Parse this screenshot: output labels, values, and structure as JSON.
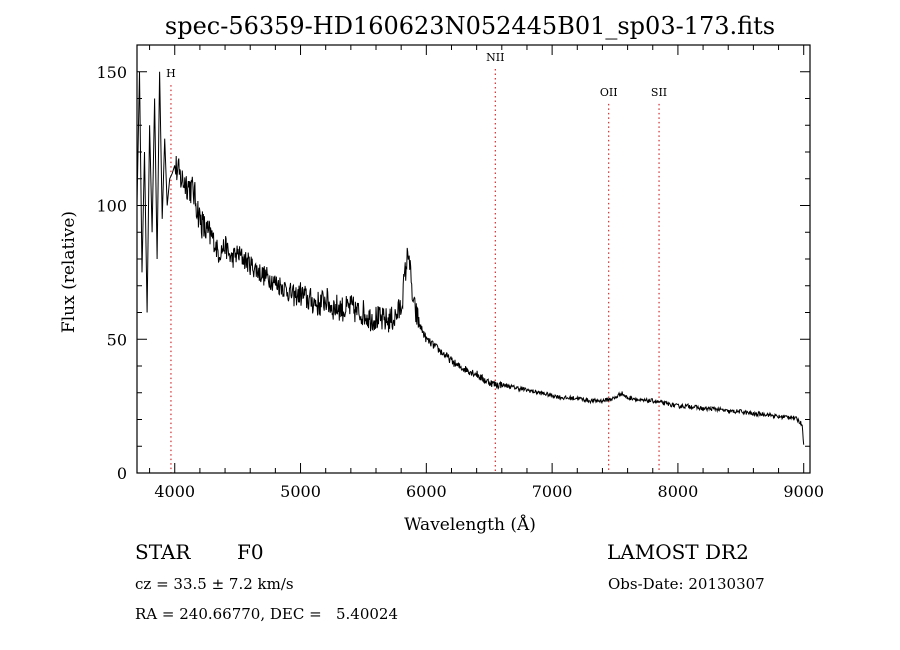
{
  "chart_data": {
    "type": "line",
    "title": "spec-56359-HD160623N052445B01_sp03-173.fits",
    "xlabel": "Wavelength (Å)",
    "ylabel": "Flux (relative)",
    "xlim": [
      3700,
      9050
    ],
    "ylim": [
      0,
      160
    ],
    "xticks": [
      4000,
      5000,
      6000,
      7000,
      8000,
      9000
    ],
    "yticks": [
      0,
      50,
      100,
      150
    ],
    "grid": false,
    "lines": [
      {
        "label": "H",
        "x": 3970,
        "label_y": 148
      },
      {
        "label": "NII",
        "x": 6548,
        "label_y": 154
      },
      {
        "label": "OII",
        "x": 7450,
        "label_y": 141
      },
      {
        "label": "SII",
        "x": 7850,
        "label_y": 141
      }
    ],
    "series": [
      {
        "x": [
          3700,
          3720,
          3740,
          3760,
          3780,
          3800,
          3820,
          3840,
          3860,
          3880,
          3900,
          3920,
          3940,
          3960,
          3980,
          4000,
          4050,
          4100,
          4150,
          4200,
          4250,
          4300,
          4350,
          4400,
          4450,
          4500,
          4550,
          4600,
          4650,
          4700,
          4750,
          4800,
          4850,
          4900,
          4950,
          5000,
          5050,
          5100,
          5150,
          5200,
          5250,
          5300,
          5350,
          5400,
          5450,
          5500,
          5550,
          5600,
          5650,
          5700,
          5750,
          5800,
          5830,
          5860,
          5880,
          5900,
          5950,
          6000,
          6050,
          6100,
          6150,
          6200,
          6250,
          6300,
          6350,
          6400,
          6450,
          6500,
          6550,
          6600,
          6700,
          6800,
          6900,
          7000,
          7100,
          7200,
          7300,
          7400,
          7500,
          7550,
          7600,
          7650,
          7700,
          7800,
          7900,
          8000,
          8100,
          8200,
          8300,
          8400,
          8500,
          8600,
          8700,
          8800,
          8900,
          8950,
          8990,
          9000
        ],
        "y": [
          100,
          150,
          75,
          120,
          60,
          130,
          90,
          140,
          80,
          150,
          95,
          125,
          100,
          110,
          112,
          115,
          110,
          108,
          105,
          95,
          90,
          88,
          82,
          85,
          80,
          82,
          80,
          78,
          76,
          74,
          73,
          71,
          70,
          68,
          66,
          67,
          65,
          64,
          63,
          65,
          62,
          62,
          61,
          62,
          60,
          60,
          58,
          58,
          57,
          57,
          58,
          62,
          74,
          84,
          70,
          62,
          55,
          50,
          48,
          46,
          44,
          42,
          40,
          39,
          38,
          37,
          35,
          34,
          33,
          33,
          32,
          31,
          30,
          29,
          28,
          28,
          27,
          27,
          28,
          30,
          28,
          28,
          27,
          27,
          26,
          25,
          25,
          24,
          24,
          23,
          23,
          22,
          22,
          21,
          21,
          20,
          18,
          10
        ]
      }
    ]
  },
  "footer": {
    "object_class": "STAR",
    "subclass": "F0",
    "survey": "LAMOST DR2",
    "cz": "cz = 33.5 ± 7.2 km/s",
    "obs_date": "Obs-Date: 20130307",
    "coords": "RA = 240.66770, DEC =   5.40024"
  }
}
